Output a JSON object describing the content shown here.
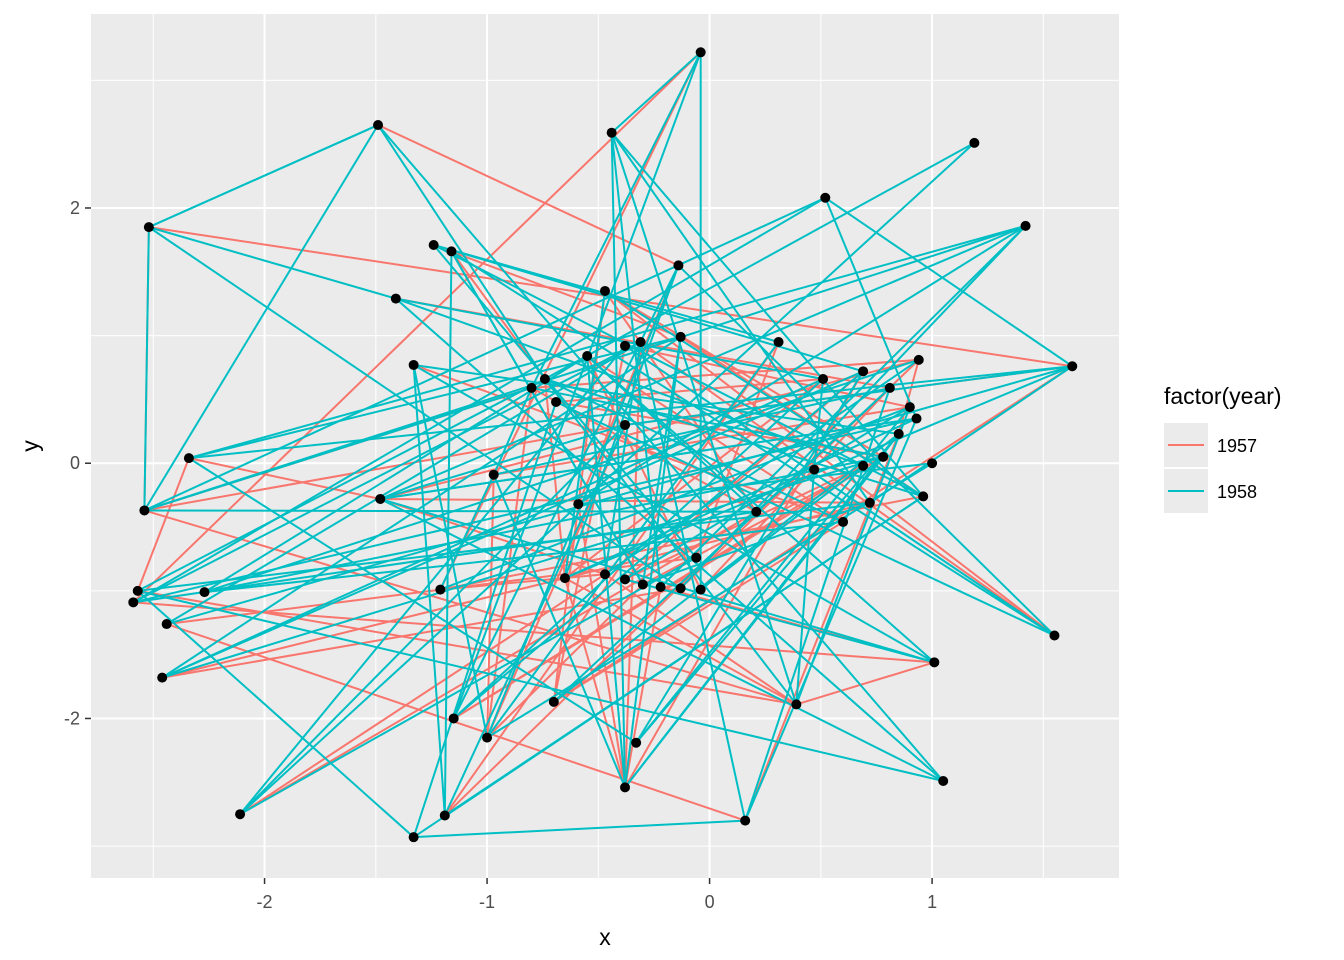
{
  "chart_data": {
    "type": "line",
    "title": "",
    "xlabel": "x",
    "ylabel": "y",
    "xlim": [
      -2.78,
      1.84
    ],
    "ylim": [
      -3.25,
      3.52
    ],
    "x_ticks": [
      -2,
      -1,
      0,
      1
    ],
    "y_ticks": [
      -2,
      0,
      2
    ],
    "x_tick_labels": [
      "-2",
      "-1",
      "0",
      "1"
    ],
    "y_tick_labels": [
      "-2",
      "0",
      "2"
    ],
    "grid": true,
    "legend": {
      "title": "factor(year)",
      "position": "right",
      "entries": [
        {
          "label": "1957",
          "color": "#F8766D"
        },
        {
          "label": "1958",
          "color": "#00BFC4"
        }
      ]
    },
    "colors": {
      "panel_bg": "#EBEBEB",
      "grid_major": "#FFFFFF",
      "point": "#000000",
      "1957": "#F8766D",
      "1958": "#00BFC4"
    },
    "points": [
      [
        -0.04,
        3.22
      ],
      [
        -1.49,
        2.65
      ],
      [
        -0.44,
        2.59
      ],
      [
        1.19,
        2.51
      ],
      [
        0.52,
        2.08
      ],
      [
        -2.52,
        1.85
      ],
      [
        1.42,
        1.86
      ],
      [
        -1.24,
        1.71
      ],
      [
        -1.16,
        1.66
      ],
      [
        -0.14,
        1.55
      ],
      [
        -0.47,
        1.35
      ],
      [
        -1.41,
        1.29
      ],
      [
        -0.13,
        0.99
      ],
      [
        0.31,
        0.95
      ],
      [
        -0.31,
        0.95
      ],
      [
        -0.38,
        0.92
      ],
      [
        -0.55,
        0.84
      ],
      [
        0.94,
        0.81
      ],
      [
        -1.33,
        0.77
      ],
      [
        1.63,
        0.76
      ],
      [
        0.69,
        0.72
      ],
      [
        0.51,
        0.66
      ],
      [
        -0.74,
        0.66
      ],
      [
        -0.8,
        0.59
      ],
      [
        0.81,
        0.59
      ],
      [
        -0.69,
        0.48
      ],
      [
        0.9,
        0.44
      ],
      [
        0.93,
        0.35
      ],
      [
        -0.38,
        0.3
      ],
      [
        0.85,
        0.23
      ],
      [
        -2.34,
        0.04
      ],
      [
        0.78,
        0.05
      ],
      [
        1.0,
        0.0
      ],
      [
        0.69,
        -0.02
      ],
      [
        0.47,
        -0.05
      ],
      [
        -0.97,
        -0.09
      ],
      [
        -1.48,
        -0.28
      ],
      [
        0.96,
        -0.26
      ],
      [
        -0.59,
        -0.32
      ],
      [
        0.72,
        -0.31
      ],
      [
        -2.54,
        -0.37
      ],
      [
        0.21,
        -0.38
      ],
      [
        0.6,
        -0.46
      ],
      [
        -0.06,
        -0.74
      ],
      [
        -0.47,
        -0.87
      ],
      [
        -0.65,
        -0.9
      ],
      [
        -0.38,
        -0.91
      ],
      [
        -0.3,
        -0.95
      ],
      [
        -0.22,
        -0.97
      ],
      [
        -0.13,
        -0.98
      ],
      [
        -0.04,
        -0.99
      ],
      [
        -1.21,
        -0.99
      ],
      [
        -2.57,
        -1.0
      ],
      [
        -2.27,
        -1.01
      ],
      [
        -2.59,
        -1.09
      ],
      [
        -2.44,
        -1.26
      ],
      [
        1.55,
        -1.35
      ],
      [
        1.01,
        -1.56
      ],
      [
        -2.46,
        -1.68
      ],
      [
        -0.7,
        -1.87
      ],
      [
        0.39,
        -1.89
      ],
      [
        -1.15,
        -2.0
      ],
      [
        -1.0,
        -2.15
      ],
      [
        -0.33,
        -2.19
      ],
      [
        -0.38,
        -2.54
      ],
      [
        1.05,
        -2.49
      ],
      [
        -2.11,
        -2.75
      ],
      [
        -1.19,
        -2.76
      ],
      [
        0.16,
        -2.8
      ],
      [
        -1.33,
        -2.93
      ]
    ],
    "series": [
      {
        "name": "1957",
        "segments": [
          [
            5,
            19
          ],
          [
            5,
            40
          ],
          [
            40,
            60
          ],
          [
            60,
            57
          ],
          [
            57,
            54
          ],
          [
            54,
            0
          ],
          [
            0,
            51
          ],
          [
            51,
            44
          ],
          [
            44,
            60
          ],
          [
            1,
            9
          ],
          [
            9,
            38
          ],
          [
            38,
            64
          ],
          [
            64,
            48
          ],
          [
            48,
            57
          ],
          [
            8,
            22
          ],
          [
            22,
            45
          ],
          [
            45,
            64
          ],
          [
            7,
            12
          ],
          [
            12,
            37
          ],
          [
            37,
            51
          ],
          [
            18,
            42
          ],
          [
            42,
            59
          ],
          [
            59,
            15
          ],
          [
            15,
            26
          ],
          [
            26,
            35
          ],
          [
            35,
            62
          ],
          [
            62,
            23
          ],
          [
            23,
            41
          ],
          [
            41,
            67
          ],
          [
            67,
            13
          ],
          [
            13,
            43
          ],
          [
            43,
            55
          ],
          [
            55,
            68
          ],
          [
            68,
            29
          ],
          [
            29,
            17
          ],
          [
            17,
            49
          ],
          [
            49,
            58
          ],
          [
            58,
            39
          ],
          [
            39,
            36
          ],
          [
            36,
            30
          ],
          [
            30,
            52
          ],
          [
            52,
            60
          ],
          [
            60,
            45
          ],
          [
            45,
            21
          ],
          [
            21,
            25
          ],
          [
            25,
            31
          ],
          [
            31,
            61
          ],
          [
            61,
            33
          ],
          [
            33,
            46
          ],
          [
            46,
            20
          ],
          [
            20,
            64
          ],
          [
            64,
            14
          ],
          [
            14,
            56
          ],
          [
            56,
            10
          ],
          [
            10,
            31
          ],
          [
            31,
            47
          ],
          [
            47,
            62
          ],
          [
            62,
            28
          ],
          [
            28,
            40
          ],
          [
            40,
            23
          ],
          [
            23,
            17
          ],
          [
            17,
            36
          ],
          [
            36,
            44
          ],
          [
            44,
            66
          ],
          [
            66,
            41
          ],
          [
            41,
            10
          ],
          [
            10,
            59
          ],
          [
            59,
            19
          ],
          [
            19,
            28
          ],
          [
            11,
            24
          ],
          [
            24,
            50
          ],
          [
            50,
            16
          ],
          [
            16,
            42
          ]
        ]
      },
      {
        "name": "1958",
        "segments": [
          [
            5,
            40
          ],
          [
            5,
            1
          ],
          [
            1,
            40
          ],
          [
            1,
            22
          ],
          [
            22,
            60
          ],
          [
            60,
            2
          ],
          [
            2,
            0
          ],
          [
            0,
            23
          ],
          [
            23,
            35
          ],
          [
            35,
            64
          ],
          [
            64,
            2
          ],
          [
            2,
            37
          ],
          [
            37,
            7
          ],
          [
            7,
            43
          ],
          [
            43,
            66
          ],
          [
            66,
            3
          ],
          [
            3,
            22
          ],
          [
            22,
            52
          ],
          [
            52,
            69
          ],
          [
            69,
            68
          ],
          [
            68,
            27
          ],
          [
            27,
            4
          ],
          [
            4,
            54
          ],
          [
            54,
            27
          ],
          [
            27,
            36
          ],
          [
            36,
            6
          ],
          [
            6,
            40
          ],
          [
            40,
            4
          ],
          [
            4,
            19
          ],
          [
            19,
            30
          ],
          [
            30,
            6
          ],
          [
            6,
            49
          ],
          [
            49,
            5
          ],
          [
            5,
            11
          ],
          [
            11,
            21
          ],
          [
            21,
            58
          ],
          [
            58,
            12
          ],
          [
            12,
            47
          ],
          [
            47,
            8
          ],
          [
            8,
            56
          ],
          [
            56,
            9
          ],
          [
            9,
            61
          ],
          [
            61,
            20
          ],
          [
            20,
            7
          ],
          [
            7,
            13
          ],
          [
            13,
            62
          ],
          [
            62,
            18
          ],
          [
            18,
            57
          ],
          [
            57,
            16
          ],
          [
            16,
            53
          ],
          [
            53,
            17
          ],
          [
            17,
            44
          ],
          [
            44,
            14
          ],
          [
            14,
            55
          ],
          [
            55,
            19
          ],
          [
            19,
            45
          ],
          [
            45,
            10
          ],
          [
            10,
            37
          ],
          [
            37,
            69
          ],
          [
            69,
            25
          ],
          [
            25,
            56
          ],
          [
            56,
            15
          ],
          [
            15,
            66
          ],
          [
            66,
            28
          ],
          [
            28,
            67
          ],
          [
            67,
            18
          ],
          [
            18,
            29
          ],
          [
            29,
            59
          ],
          [
            59,
            24
          ],
          [
            24,
            41
          ],
          [
            41,
            40
          ],
          [
            40,
            23
          ],
          [
            23,
            31
          ],
          [
            31,
            64
          ],
          [
            64,
            12
          ],
          [
            12,
            30
          ],
          [
            30,
            63
          ],
          [
            63,
            26
          ],
          [
            26,
            46
          ],
          [
            46,
            57
          ],
          [
            57,
            36
          ],
          [
            36,
            27
          ],
          [
            27,
            45
          ],
          [
            45,
            9
          ],
          [
            9,
            62
          ],
          [
            62,
            32
          ],
          [
            32,
            38
          ],
          [
            38,
            6
          ],
          [
            6,
            48
          ],
          [
            48,
            2
          ],
          [
            2,
            39
          ],
          [
            39,
            52
          ],
          [
            52,
            65
          ],
          [
            65,
            11
          ],
          [
            11,
            33
          ],
          [
            33,
            50
          ],
          [
            50,
            0
          ],
          [
            0,
            61
          ],
          [
            61,
            21
          ],
          [
            21,
            34
          ],
          [
            34,
            60
          ],
          [
            60,
            26
          ],
          [
            26,
            51
          ],
          [
            51,
            35
          ],
          [
            35,
            24
          ],
          [
            24,
            68
          ],
          [
            68,
            14
          ],
          [
            14,
            54
          ],
          [
            54,
            41
          ],
          [
            41,
            16
          ],
          [
            16,
            64
          ],
          [
            64,
            29
          ],
          [
            29,
            63
          ],
          [
            63,
            20
          ],
          [
            20,
            58
          ],
          [
            58,
            31
          ],
          [
            31,
            53
          ],
          [
            53,
            42
          ],
          [
            42,
            22
          ],
          [
            22,
            37
          ],
          [
            37,
            67
          ],
          [
            67,
            8
          ],
          [
            8,
            47
          ],
          [
            47,
            39
          ],
          [
            39,
            19
          ],
          [
            19,
            28
          ],
          [
            28,
            36
          ],
          [
            36,
            65
          ],
          [
            65,
            1
          ],
          [
            1,
            5
          ]
        ]
      }
    ]
  }
}
